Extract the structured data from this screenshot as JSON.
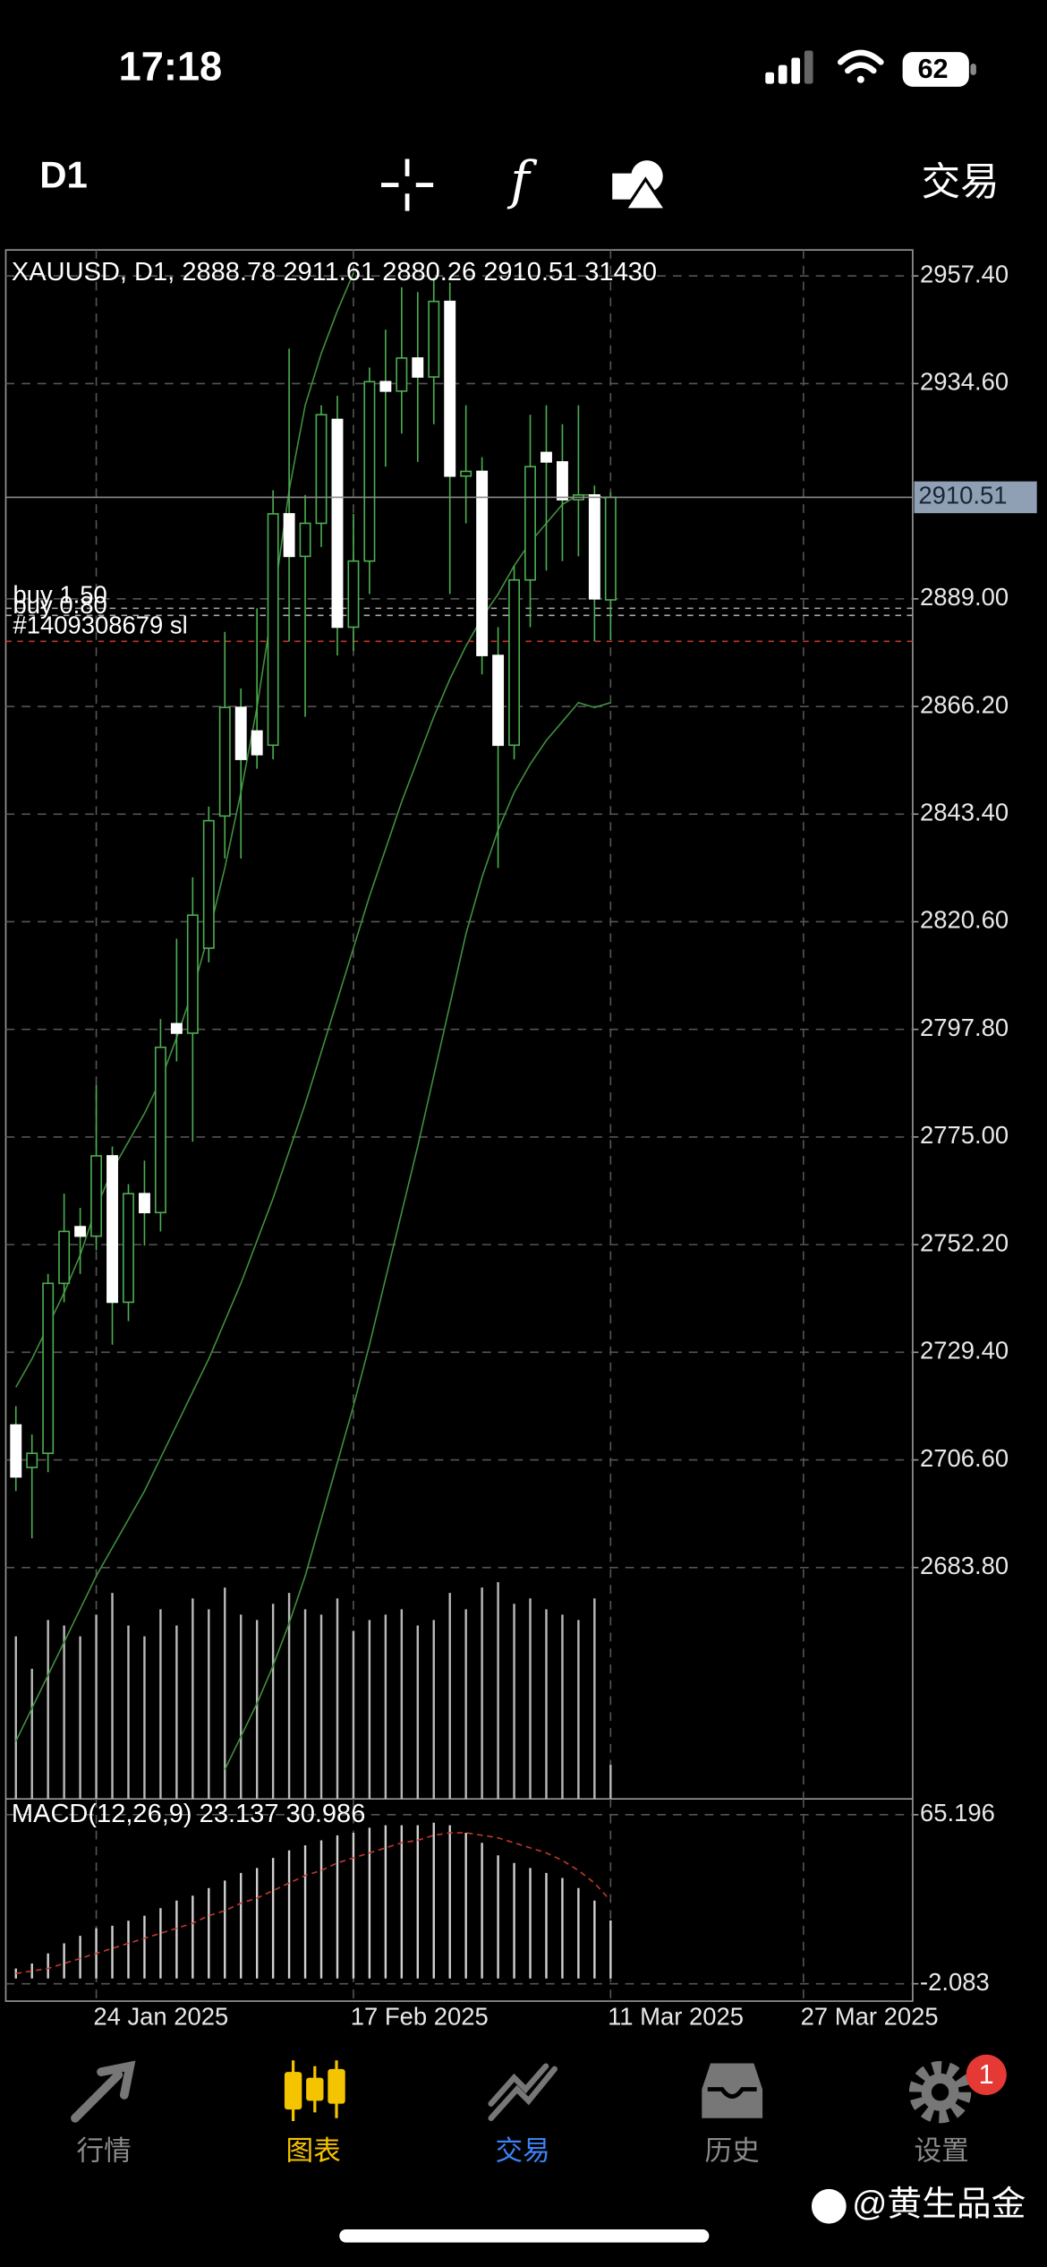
{
  "status_bar": {
    "time": "17:18",
    "battery": "62"
  },
  "toolbar": {
    "timeframe": "D1",
    "indicators": "f",
    "trade": "交易"
  },
  "chart_data": {
    "type": "candlestick",
    "symbol": "XAUUSD",
    "timeframe": "D1",
    "x": [
      "2025-01-17",
      "2025-01-20",
      "2025-01-21",
      "2025-01-22",
      "2025-01-23",
      "2025-01-24",
      "2025-01-27",
      "2025-01-28",
      "2025-01-29",
      "2025-01-30",
      "2025-01-31",
      "2025-02-03",
      "2025-02-04",
      "2025-02-05",
      "2025-02-06",
      "2025-02-07",
      "2025-02-10",
      "2025-02-11",
      "2025-02-12",
      "2025-02-13",
      "2025-02-14",
      "2025-02-17",
      "2025-02-18",
      "2025-02-19",
      "2025-02-20",
      "2025-02-21",
      "2025-02-24",
      "2025-02-25",
      "2025-02-26",
      "2025-02-27",
      "2025-02-28",
      "2025-03-03",
      "2025-03-04",
      "2025-03-05",
      "2025-03-06",
      "2025-03-07",
      "2025-03-10",
      "2025-03-11"
    ],
    "open": [
      2714,
      2705,
      2708,
      2744,
      2756,
      2754,
      2771,
      2740,
      2763,
      2759,
      2799,
      2797,
      2815,
      2843,
      2866,
      2861,
      2858,
      2907,
      2898,
      2905,
      2927,
      2883,
      2897,
      2935,
      2933,
      2940,
      2936,
      2952,
      2915,
      2916,
      2877,
      2858,
      2893,
      2920,
      2918,
      2910,
      2911,
      2888.78
    ],
    "high": [
      2718,
      2712,
      2746,
      2763,
      2760,
      2786,
      2773,
      2765,
      2770,
      2800,
      2817,
      2830,
      2845,
      2882,
      2870,
      2887,
      2912,
      2942,
      2911,
      2930,
      2932,
      2907,
      2938,
      2946,
      2955,
      2954,
      2957,
      2956,
      2930,
      2919,
      2883,
      2896,
      2928,
      2930,
      2926,
      2930,
      2913,
      2911.61
    ],
    "low": [
      2700,
      2690,
      2704,
      2740,
      2746,
      2751,
      2731,
      2736,
      2752,
      2755,
      2791,
      2774,
      2812,
      2834,
      2834,
      2853,
      2855,
      2880,
      2864,
      2900,
      2877,
      2878,
      2890,
      2917,
      2924,
      2918,
      2926,
      2890,
      2905,
      2873,
      2832,
      2855,
      2883,
      2895,
      2897,
      2898,
      2880,
      2880.26
    ],
    "close": [
      2703,
      2708,
      2744,
      2755,
      2754,
      2771,
      2740,
      2763,
      2759,
      2794,
      2797,
      2822,
      2842,
      2866,
      2855,
      2856,
      2907,
      2898,
      2905,
      2928,
      2883,
      2897,
      2935,
      2933,
      2940,
      2936,
      2952,
      2915,
      2916,
      2877,
      2858,
      2893,
      2917,
      2918,
      2910,
      2911,
      2889,
      2910.51
    ],
    "volume": [
      150000,
      120000,
      165000,
      160000,
      150000,
      170000,
      190000,
      160000,
      150000,
      175000,
      160000,
      185000,
      175000,
      195000,
      170000,
      165000,
      180000,
      190000,
      175000,
      170000,
      185000,
      155000,
      165000,
      170000,
      175000,
      160000,
      165000,
      190000,
      175000,
      195000,
      200000,
      180000,
      185000,
      175000,
      170000,
      165000,
      185000,
      31430
    ],
    "up_color": "#000000",
    "down_color": "#ffffff",
    "wick_color": "#4caf50",
    "volume_color": "#b8b8b8",
    "ylim": [
      2634.8,
      2962.9
    ],
    "yticks": [
      {
        "value": 2957.4,
        "label": "2957.40"
      },
      {
        "value": 2934.6,
        "label": "2934.60"
      },
      {
        "value": 2889,
        "label": "2889.00"
      },
      {
        "value": 2866.2,
        "label": "2866.20"
      },
      {
        "value": 2843.4,
        "label": "2843.40"
      },
      {
        "value": 2820.6,
        "label": "2820.60"
      },
      {
        "value": 2797.8,
        "label": "2797.80"
      },
      {
        "value": 2775,
        "label": "2775.00"
      },
      {
        "value": 2752.2,
        "label": "2752.20"
      },
      {
        "value": 2729.4,
        "label": "2729.40"
      },
      {
        "value": 2706.6,
        "label": "2706.60"
      },
      {
        "value": 2683.8,
        "label": "2683.80"
      }
    ],
    "xticks": [
      {
        "value": "2025-01-24",
        "label": "24 Jan 2025"
      },
      {
        "value": "2025-02-17",
        "label": "17 Feb 2025"
      },
      {
        "value": "2025-03-11",
        "label": "11 Mar 2025"
      },
      {
        "value": "2025-03-27",
        "label": "27 Mar 2025"
      }
    ],
    "grid": true,
    "series": [
      {
        "color": "#3f8f3f",
        "values": [
          2722,
          2728,
          2735,
          2742,
          2750,
          2760,
          2768,
          2774,
          2780,
          2787,
          2796,
          2806,
          2818,
          2832,
          2848,
          2866,
          2888,
          2912,
          2930,
          2941,
          2950,
          2958,
          null,
          null,
          null,
          null,
          null,
          null,
          null,
          null,
          null,
          null,
          null,
          null,
          null,
          null,
          null,
          null
        ]
      },
      {
        "color": "#3f8f3f",
        "values": [
          2647,
          2654,
          2661,
          2668,
          2675,
          2682,
          2688,
          2694,
          2700,
          2707,
          2714,
          2721,
          2728,
          2736,
          2744,
          2753,
          2762,
          2772,
          2782,
          2793,
          2804,
          2815,
          2826,
          2836,
          2846,
          2855,
          2864,
          2872,
          2879,
          2885,
          2890,
          2896,
          2901,
          2905,
          2909,
          2911,
          2911,
          2910
        ]
      },
      {
        "color": "#3f8f3f",
        "values": [
          null,
          null,
          null,
          null,
          null,
          null,
          null,
          null,
          null,
          null,
          null,
          null,
          null,
          2641,
          2648,
          2655,
          2663,
          2672,
          2682,
          2694,
          2706,
          2718,
          2731,
          2745,
          2759,
          2773,
          2788,
          2803,
          2818,
          2830,
          2840,
          2848,
          2854,
          2859,
          2863,
          2867,
          2866,
          2867
        ]
      }
    ],
    "orders": [
      {
        "label": "buy 1.50",
        "price": 2887.0
      },
      {
        "label": "buy 0.80",
        "price": 2885.5
      }
    ],
    "stop_loss": {
      "label": "#1409308679 sl",
      "price": 2880.0,
      "color": "#c0392b"
    },
    "macd": {
      "name": "MACD(12,26,9)",
      "values": [
        4,
        6,
        10,
        14,
        17,
        20,
        21,
        23,
        25,
        28,
        31,
        33,
        36,
        39,
        42,
        44,
        48,
        51,
        53,
        55,
        57,
        58,
        60,
        61,
        61,
        61,
        62,
        61,
        58,
        54,
        49,
        46,
        44,
        42,
        40,
        36,
        31,
        23.137
      ],
      "signal": [
        2,
        3,
        4,
        6,
        8,
        10,
        12,
        14,
        16,
        18,
        20,
        22,
        25,
        27,
        30,
        32,
        35,
        38,
        41,
        43,
        46,
        48,
        50,
        52,
        54,
        55,
        57,
        58,
        58,
        57,
        56,
        54,
        52,
        50,
        47,
        43,
        38,
        30.986
      ],
      "ylim": [
        -9.0,
        71.5
      ],
      "yticks": [
        65.196,
        -2.083
      ],
      "color": "#cfcfcf",
      "signal_color": "#c0392b"
    }
  },
  "tab_bar": {
    "tabs": [
      {
        "label": "行情"
      },
      {
        "label": "图表"
      },
      {
        "label": "交易"
      },
      {
        "label": "历史"
      },
      {
        "label": "设置"
      }
    ],
    "badge": "1"
  },
  "watermark": "@黄生品金"
}
